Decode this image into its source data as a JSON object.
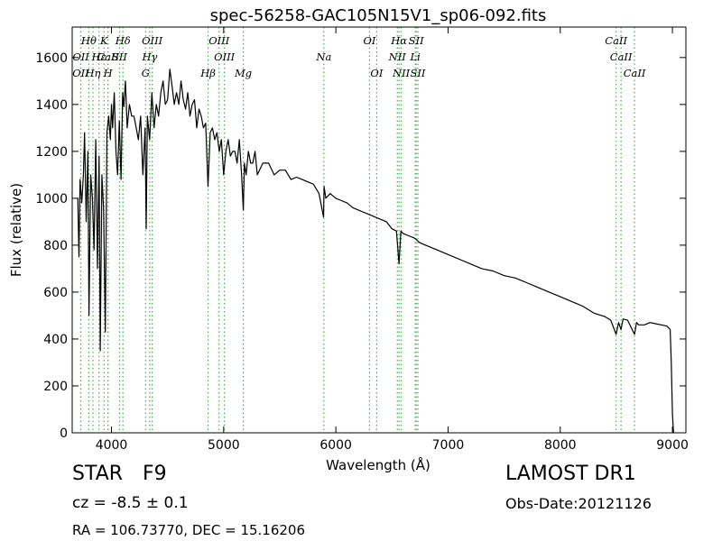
{
  "chart_data": {
    "type": "line",
    "title": "spec-56258-GAC105N15V1_sp06-092.fits",
    "xlabel": "Wavelength (Å)",
    "ylabel": "Flux (relative)",
    "xlim": [
      3650,
      9120
    ],
    "ylim": [
      0,
      1730
    ],
    "xticks": [
      4000,
      5000,
      6000,
      7000,
      8000,
      9000
    ],
    "yticks": [
      0,
      200,
      400,
      600,
      800,
      1000,
      1200,
      1400,
      1600
    ],
    "grid": false,
    "line_color": "#000000",
    "marker_color": "#4caf50",
    "series": [
      {
        "x": [
          3700,
          3710,
          3720,
          3735,
          3750,
          3760,
          3775,
          3790,
          3800,
          3815,
          3830,
          3845,
          3860,
          3875,
          3890,
          3900,
          3915,
          3930,
          3945,
          3960,
          3975,
          3990,
          4000,
          4010,
          4025,
          4040,
          4055,
          4070,
          4085,
          4100,
          4110,
          4125,
          4140,
          4160,
          4180,
          4200,
          4220,
          4240,
          4260,
          4280,
          4300,
          4310,
          4320,
          4340,
          4360,
          4380,
          4400,
          4420,
          4440,
          4460,
          4480,
          4500,
          4520,
          4540,
          4560,
          4580,
          4600,
          4620,
          4640,
          4660,
          4680,
          4700,
          4720,
          4740,
          4760,
          4780,
          4800,
          4820,
          4840,
          4861,
          4880,
          4900,
          4920,
          4940,
          4960,
          4980,
          5000,
          5020,
          5040,
          5060,
          5080,
          5100,
          5120,
          5140,
          5160,
          5175,
          5185,
          5200,
          5220,
          5240,
          5260,
          5280,
          5300,
          5350,
          5400,
          5450,
          5500,
          5550,
          5600,
          5650,
          5700,
          5750,
          5800,
          5850,
          5890,
          5895,
          5910,
          5950,
          6000,
          6050,
          6100,
          6150,
          6200,
          6250,
          6300,
          6350,
          6400,
          6450,
          6500,
          6540,
          6563,
          6580,
          6600,
          6650,
          6700,
          6750,
          6800,
          6900,
          7000,
          7100,
          7200,
          7300,
          7400,
          7500,
          7600,
          7700,
          7800,
          7900,
          8000,
          8100,
          8200,
          8300,
          8400,
          8450,
          8498,
          8520,
          8542,
          8560,
          8600,
          8662,
          8680,
          8700,
          8750,
          8800,
          8850,
          8900,
          8950,
          8980,
          8990,
          9000,
          9010
        ],
        "values": [
          1000,
          750,
          1080,
          980,
          1100,
          1280,
          900,
          1200,
          500,
          1100,
          1000,
          780,
          1250,
          700,
          1180,
          350,
          1100,
          950,
          430,
          1280,
          1350,
          1250,
          1400,
          1300,
          1450,
          1200,
          1100,
          1330,
          1080,
          1450,
          1390,
          1500,
          1300,
          1400,
          1350,
          1350,
          1300,
          1250,
          1350,
          1100,
          1300,
          870,
          1350,
          1250,
          1450,
          1300,
          1400,
          1350,
          1450,
          1500,
          1400,
          1420,
          1550,
          1480,
          1400,
          1450,
          1400,
          1500,
          1420,
          1380,
          1450,
          1350,
          1400,
          1420,
          1300,
          1380,
          1350,
          1300,
          1320,
          1050,
          1280,
          1300,
          1250,
          1280,
          1200,
          1250,
          1100,
          1200,
          1250,
          1180,
          1200,
          1200,
          1150,
          1250,
          1100,
          950,
          1150,
          1100,
          1200,
          1150,
          1150,
          1200,
          1100,
          1150,
          1150,
          1100,
          1120,
          1120,
          1080,
          1090,
          1080,
          1070,
          1060,
          1020,
          920,
          1050,
          1000,
          1020,
          1000,
          990,
          980,
          960,
          950,
          940,
          930,
          920,
          910,
          900,
          870,
          860,
          720,
          860,
          850,
          840,
          830,
          810,
          800,
          780,
          760,
          740,
          720,
          700,
          690,
          670,
          660,
          640,
          620,
          600,
          580,
          560,
          540,
          510,
          495,
          480,
          420,
          470,
          440,
          485,
          480,
          420,
          470,
          460,
          460,
          470,
          465,
          460,
          455,
          440,
          300,
          80,
          0
        ]
      }
    ],
    "lines": [
      {
        "name": "Hθ",
        "wl": 3798,
        "row": 0
      },
      {
        "name": "K",
        "wl": 3934,
        "row": 0
      },
      {
        "name": "Hδ",
        "wl": 4102,
        "row": 0
      },
      {
        "name": "OIII",
        "wl": 4363,
        "row": 0
      },
      {
        "name": "OIII",
        "wl": 4959,
        "row": 0
      },
      {
        "name": "OI",
        "wl": 6300,
        "row": 0
      },
      {
        "name": "Hα",
        "wl": 6563,
        "row": 0
      },
      {
        "name": "SII",
        "wl": 6716,
        "row": 0
      },
      {
        "name": "CaII",
        "wl": 8498,
        "row": 0
      },
      {
        "name": "OII",
        "wl": 3727,
        "row": 1
      },
      {
        "name": "Hε",
        "wl": 3889,
        "row": 1
      },
      {
        "name": "CaII",
        "wl": 3969,
        "row": 1
      },
      {
        "name": "SII",
        "wl": 4072,
        "row": 1
      },
      {
        "name": "Hγ",
        "wl": 4341,
        "row": 1
      },
      {
        "name": "OIII",
        "wl": 5007,
        "row": 1
      },
      {
        "name": "Na",
        "wl": 5893,
        "row": 1
      },
      {
        "name": "NII",
        "wl": 6548,
        "row": 1
      },
      {
        "name": "Li",
        "wl": 6708,
        "row": 1
      },
      {
        "name": "CaII",
        "wl": 8542,
        "row": 1
      },
      {
        "name": "OII",
        "wl": 3726,
        "row": 2
      },
      {
        "name": "Hη",
        "wl": 3835,
        "row": 2
      },
      {
        "name": "H",
        "wl": 3969,
        "row": 2
      },
      {
        "name": "G",
        "wl": 4304,
        "row": 2
      },
      {
        "name": "Hβ",
        "wl": 4861,
        "row": 2
      },
      {
        "name": "Mg",
        "wl": 5175,
        "row": 2
      },
      {
        "name": "OI",
        "wl": 6364,
        "row": 2
      },
      {
        "name": "NII",
        "wl": 6583,
        "row": 2
      },
      {
        "name": "SII",
        "wl": 6731,
        "row": 2
      },
      {
        "name": "CaII",
        "wl": 8662,
        "row": 2
      }
    ]
  },
  "info": {
    "class_label": "STAR",
    "subclass": "F9",
    "cz_text": "cz = -8.5  ± 0.1",
    "coords_text": "RA = 106.73770, DEC = 15.16206",
    "survey": "LAMOST DR1",
    "obs_date": "Obs-Date:20121126"
  }
}
